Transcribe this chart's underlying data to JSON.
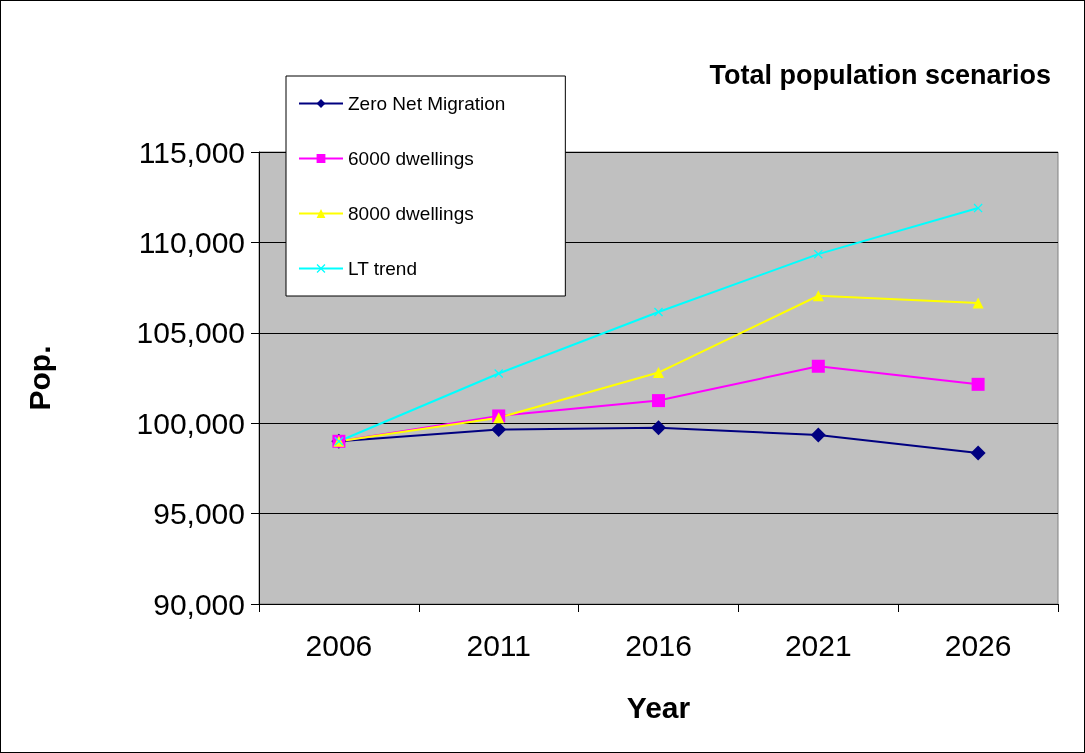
{
  "chart_data": {
    "type": "line",
    "title": "Total population scenarios",
    "xlabel": "Year",
    "ylabel": "Pop.",
    "categories": [
      "2006",
      "2011",
      "2016",
      "2021",
      "2026"
    ],
    "series": [
      {
        "name": "Zero Net Migration",
        "color": "#000080",
        "marker": "diamond",
        "values": [
          99000,
          99650,
          99750,
          99350,
          98350
        ]
      },
      {
        "name": "6000 dwellings",
        "color": "#ff00ff",
        "marker": "square",
        "values": [
          99000,
          100400,
          101250,
          103150,
          102150
        ]
      },
      {
        "name": "8000 dwellings",
        "color": "#ffff00",
        "marker": "triangle",
        "values": [
          99000,
          100300,
          102800,
          107050,
          106650
        ]
      },
      {
        "name": "LT trend",
        "color": "#00ffff",
        "marker": "cross",
        "values": [
          99000,
          102750,
          106150,
          109350,
          111900
        ]
      }
    ],
    "ylim": [
      90000,
      115000
    ],
    "yticks": [
      {
        "value": 90000,
        "label": "90,000"
      },
      {
        "value": 95000,
        "label": "95,000"
      },
      {
        "value": 100000,
        "label": "100,000"
      },
      {
        "value": 105000,
        "label": "105,000"
      },
      {
        "value": 110000,
        "label": "110,000"
      },
      {
        "value": 115000,
        "label": "115,000"
      }
    ],
    "grid": "y",
    "legend": "top left",
    "line_style": "solid"
  }
}
